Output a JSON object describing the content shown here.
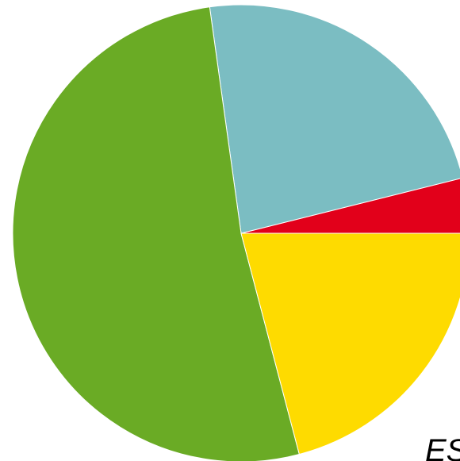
{
  "chart_data": {
    "type": "pie",
    "slices": [
      {
        "value": 3.9,
        "color": "#e2001a"
      },
      {
        "value": 23.3,
        "color": "#7bbdc2"
      },
      {
        "value": 51.9,
        "color": "#6aab25"
      },
      {
        "value": 20.9,
        "color": "#fedb00"
      }
    ],
    "start_angle_deg": 0,
    "direction": "counterclockwise",
    "annotations": [
      "ES"
    ]
  }
}
